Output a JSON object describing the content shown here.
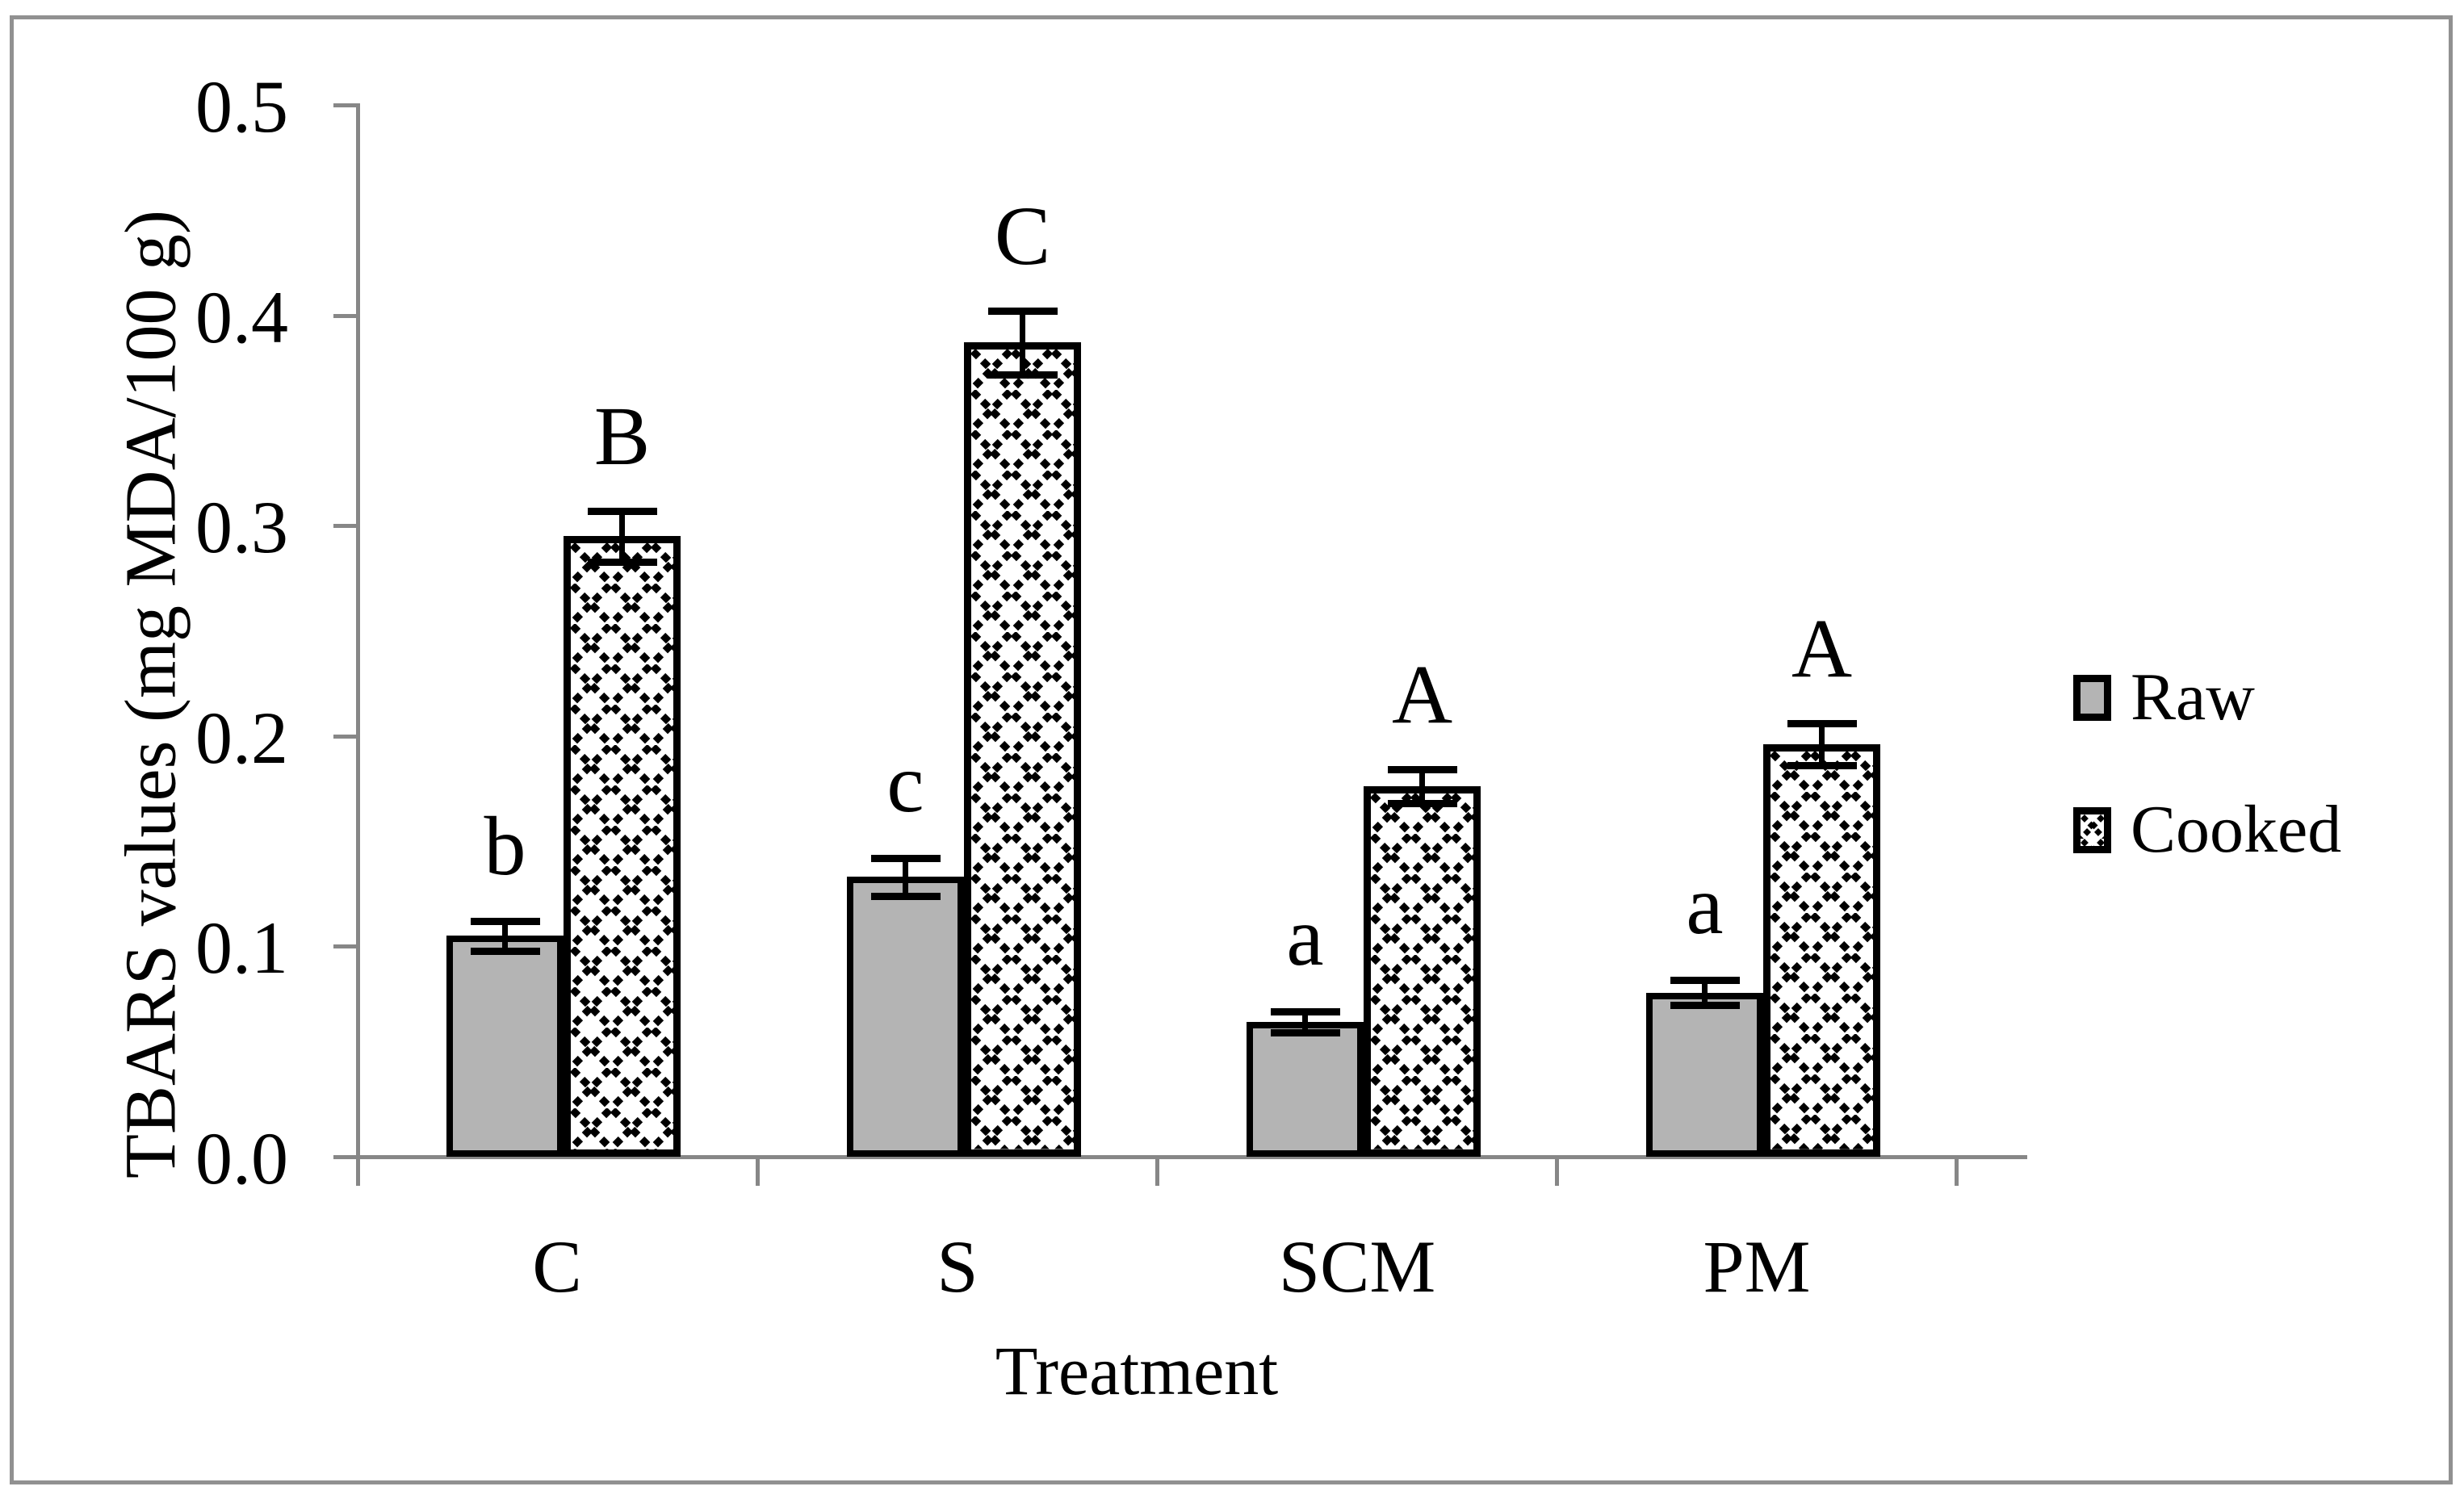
{
  "figure": {
    "y_axis": {
      "title": "TBARS values (mg MDA/100 g)",
      "tick_labels": [
        "0.5",
        "0.4",
        "0.3",
        "0.2",
        "0.1",
        "0.0"
      ]
    },
    "x_axis": {
      "title": "Treatment",
      "tick_labels": [
        "C",
        "S",
        "SCM",
        "PM"
      ]
    },
    "legend": {
      "raw_label": "Raw",
      "cooked_label": "Cooked"
    }
  },
  "chart_data": {
    "type": "bar",
    "title": "",
    "xlabel": "Treatment",
    "ylabel": "TBARS values (mg MDA/100 g)",
    "ylim": [
      0.0,
      0.5
    ],
    "grid": false,
    "legend_position": "right",
    "categories": [
      "C",
      "S",
      "SCM",
      "PM"
    ],
    "series": [
      {
        "name": "Raw",
        "style": "solid-gray",
        "values": [
          0.105,
          0.133,
          0.064,
          0.078
        ],
        "errors": [
          0.007,
          0.009,
          0.005,
          0.006
        ],
        "sig_letters": [
          "b",
          "c",
          "a",
          "a"
        ]
      },
      {
        "name": "Cooked",
        "style": "crosshatch",
        "values": [
          0.295,
          0.387,
          0.176,
          0.196
        ],
        "errors": [
          0.012,
          0.015,
          0.008,
          0.01
        ],
        "sig_letters": [
          "B",
          "C",
          "A",
          "A"
        ]
      }
    ]
  },
  "colors": {
    "bar_gray": "#b4b4b4",
    "axis_gray": "#878787",
    "frame_gray": "#919191",
    "black": "#000000"
  }
}
